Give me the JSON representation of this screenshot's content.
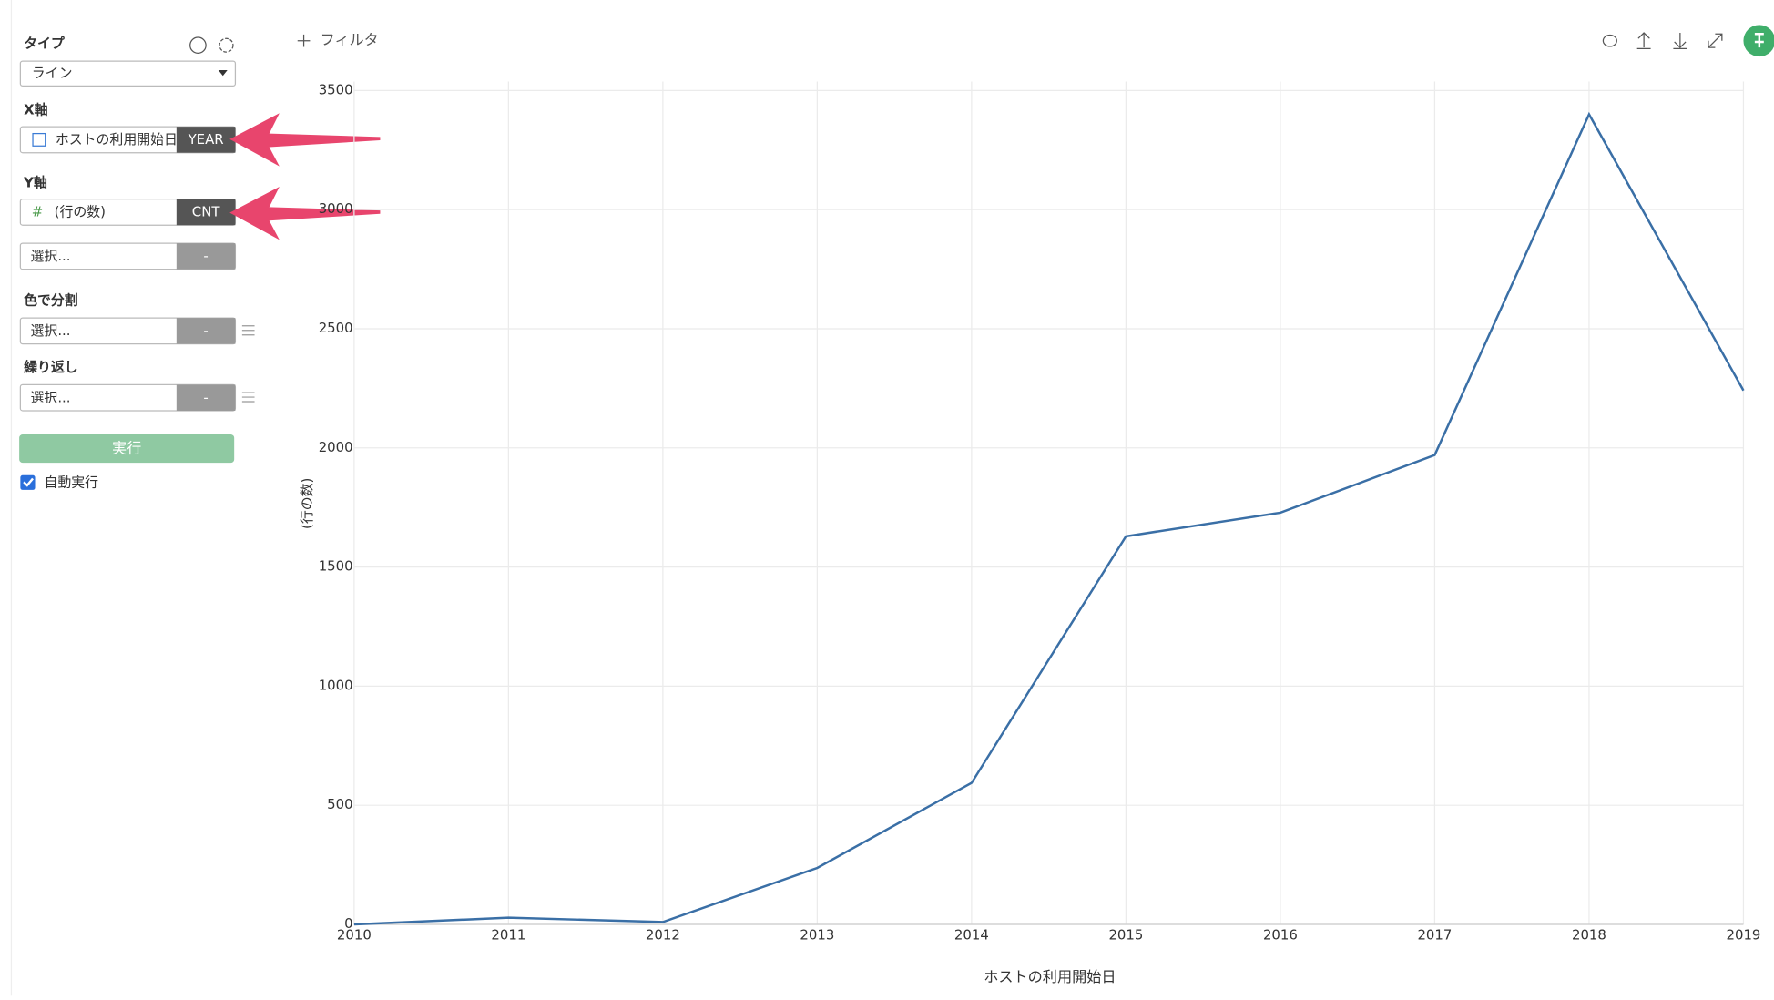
{
  "sidebar": {
    "type_label": "タイプ",
    "type_value": "ライン",
    "x_axis_label": "X軸",
    "x_field": "ホストの利用開始日",
    "x_agg": "YEAR",
    "y_axis_label": "Y軸",
    "y_field": "(行の数)",
    "y_agg": "CNT",
    "y2_field": "選択...",
    "y2_agg": "-",
    "color_label": "色で分割",
    "color_field": "選択...",
    "color_agg": "-",
    "repeat_label": "繰り返し",
    "repeat_field": "選択...",
    "repeat_agg": "-",
    "run_button": "実行",
    "auto_run": "自動実行"
  },
  "toolbar": {
    "filter": "フィルタ"
  },
  "chart_data": {
    "type": "line",
    "x_label": "ホストの利用開始日",
    "y_label": "(行の数)",
    "x": [
      2010,
      2011,
      2012,
      2013,
      2014,
      2015,
      2016,
      2017,
      2018,
      2019
    ],
    "series": [
      {
        "color": "#3a6fa6",
        "values": [
          0,
          28,
          10,
          237,
          594,
          1629,
          1728,
          1970,
          3400,
          2241
        ]
      }
    ],
    "xlim": [
      2010,
      2019
    ],
    "xticks": [
      2010,
      2011,
      2012,
      2013,
      2014,
      2015,
      2016,
      2017,
      2018,
      2019
    ],
    "ylim": [
      0,
      3500
    ],
    "yticks": [
      0,
      500,
      1000,
      1500,
      2000,
      2500,
      3000,
      3500
    ],
    "grid": true
  }
}
